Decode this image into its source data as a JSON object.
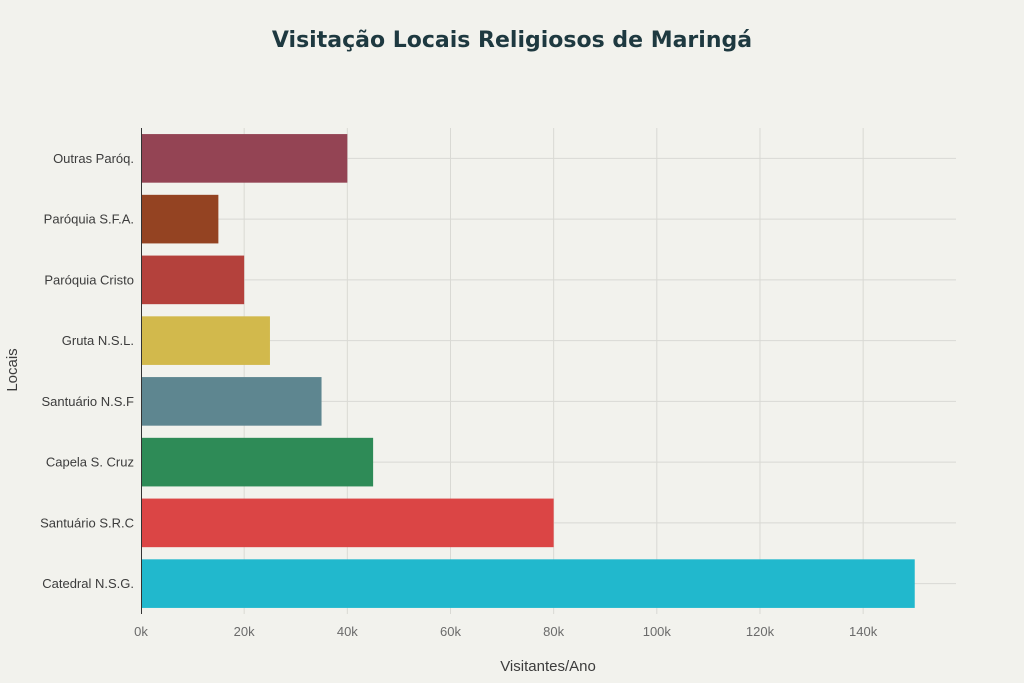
{
  "chart_data": {
    "type": "bar",
    "orientation": "horizontal",
    "title": "Visitação Locais Religiosos de Maringá",
    "xlabel": "Visitantes/Ano",
    "ylabel": "Locais",
    "xlim": [
      0,
      158000
    ],
    "x_ticks": [
      "0k",
      "20k",
      "40k",
      "60k",
      "80k",
      "100k",
      "120k",
      "140k"
    ],
    "x_tick_values": [
      0,
      20000,
      40000,
      60000,
      80000,
      100000,
      120000,
      140000
    ],
    "grid": true,
    "categories": [
      "Catedral N.S.G.",
      "Santuário S.R.C",
      "Capela S. Cruz",
      "Santuário N.S.F",
      "Gruta N.S.L.",
      "Paróquia Cristo",
      "Paróquia S.F.A.",
      "Outras Paróq."
    ],
    "values": [
      150000,
      80000,
      45000,
      35000,
      25000,
      20000,
      15000,
      40000
    ],
    "colors": [
      "#21b8cd",
      "#db4545",
      "#2e8b57",
      "#5e8690",
      "#d2b94c",
      "#b4413c",
      "#944322",
      "#944454"
    ]
  }
}
